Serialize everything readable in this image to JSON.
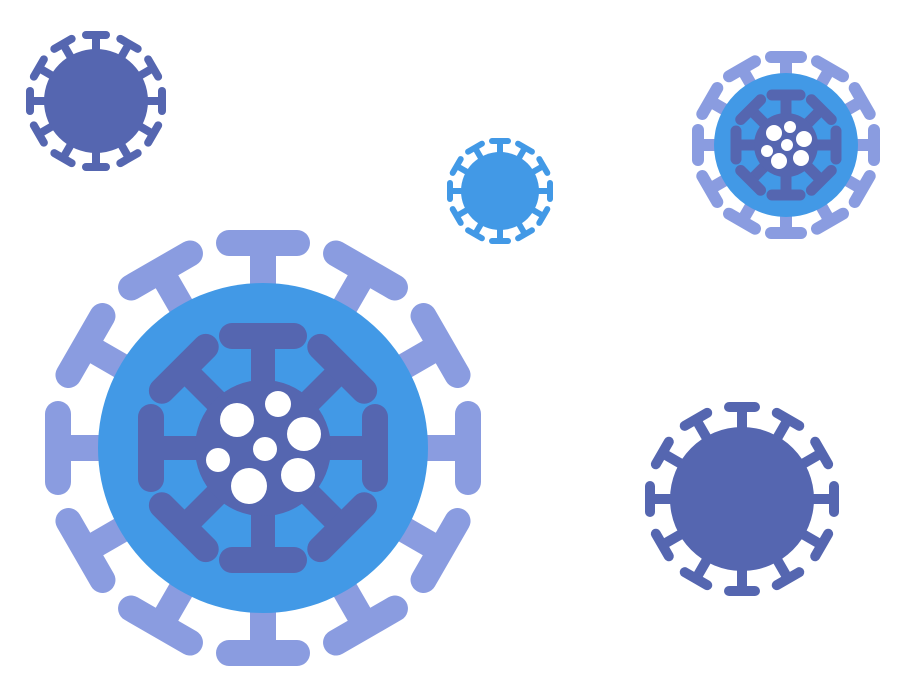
{
  "colors": {
    "background": "#ffffff",
    "light_blue": "#4299e6",
    "dark_blue": "#5566b0",
    "pale_blue": "#8a9ce0",
    "white": "#ffffff"
  },
  "illustration": {
    "subject": "virus-particles",
    "particle_count": 5,
    "icons": [
      "virus-icon",
      "virus-icon",
      "virus-icon",
      "virus-icon",
      "virus-icon"
    ]
  }
}
